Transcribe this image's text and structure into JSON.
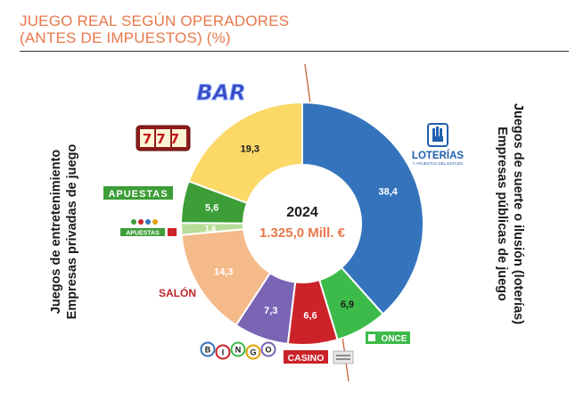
{
  "title_line1": "JUEGO REAL SEGÚN OPERADORES",
  "title_line2": "(ANTES DE IMPUESTOS) (%)",
  "left_axis": {
    "line1": "Juegos de entretenimiento",
    "line2": "Empresas privadas de juego"
  },
  "right_axis": {
    "line1": "Juegos de suerte o ilusión (loterías)",
    "line2": "Empresas públicas de juego"
  },
  "center": {
    "year": "2024",
    "total": "1.325,0 Mill. €"
  },
  "logos": {
    "bar": "BAR",
    "apuestas": "APUESTAS",
    "apuestas_small": "APUESTAS",
    "salon": "SALÓN",
    "bingo": [
      "B",
      "I",
      "N",
      "G",
      "O"
    ],
    "casino": "CASINO",
    "once": "ONCE",
    "loterias": "LOTERÍAS",
    "loterias_sub": "Y APUESTAS DEL ESTADO",
    "slot": "777"
  },
  "chart_data": {
    "type": "pie",
    "categories": [
      "Loterías",
      "ONCE",
      "Casino",
      "Bingo",
      "Salón",
      "Apuestas (salón)",
      "Apuestas",
      "Bar"
    ],
    "values": [
      38.4,
      6.9,
      6.6,
      7.3,
      14.3,
      1.6,
      5.6,
      19.3
    ],
    "labels": [
      "38,4",
      "6,9",
      "6,6",
      "7,3",
      "14,3",
      "1,6",
      "5,6",
      "19,3"
    ],
    "colors": [
      "#3574bd",
      "#3dbb4a",
      "#cc2229",
      "#7a64b4",
      "#f4ba8a",
      "#b7dd98",
      "#3d9e38",
      "#fcd867"
    ],
    "label_colors": [
      "#ffffff",
      "#1a1a1a",
      "#ffffff",
      "#ffffff",
      "#ffffff",
      "#ffffff",
      "#ffffff",
      "#1a1a1a"
    ],
    "start_angle_deg": 0,
    "direction": "clockwise"
  }
}
